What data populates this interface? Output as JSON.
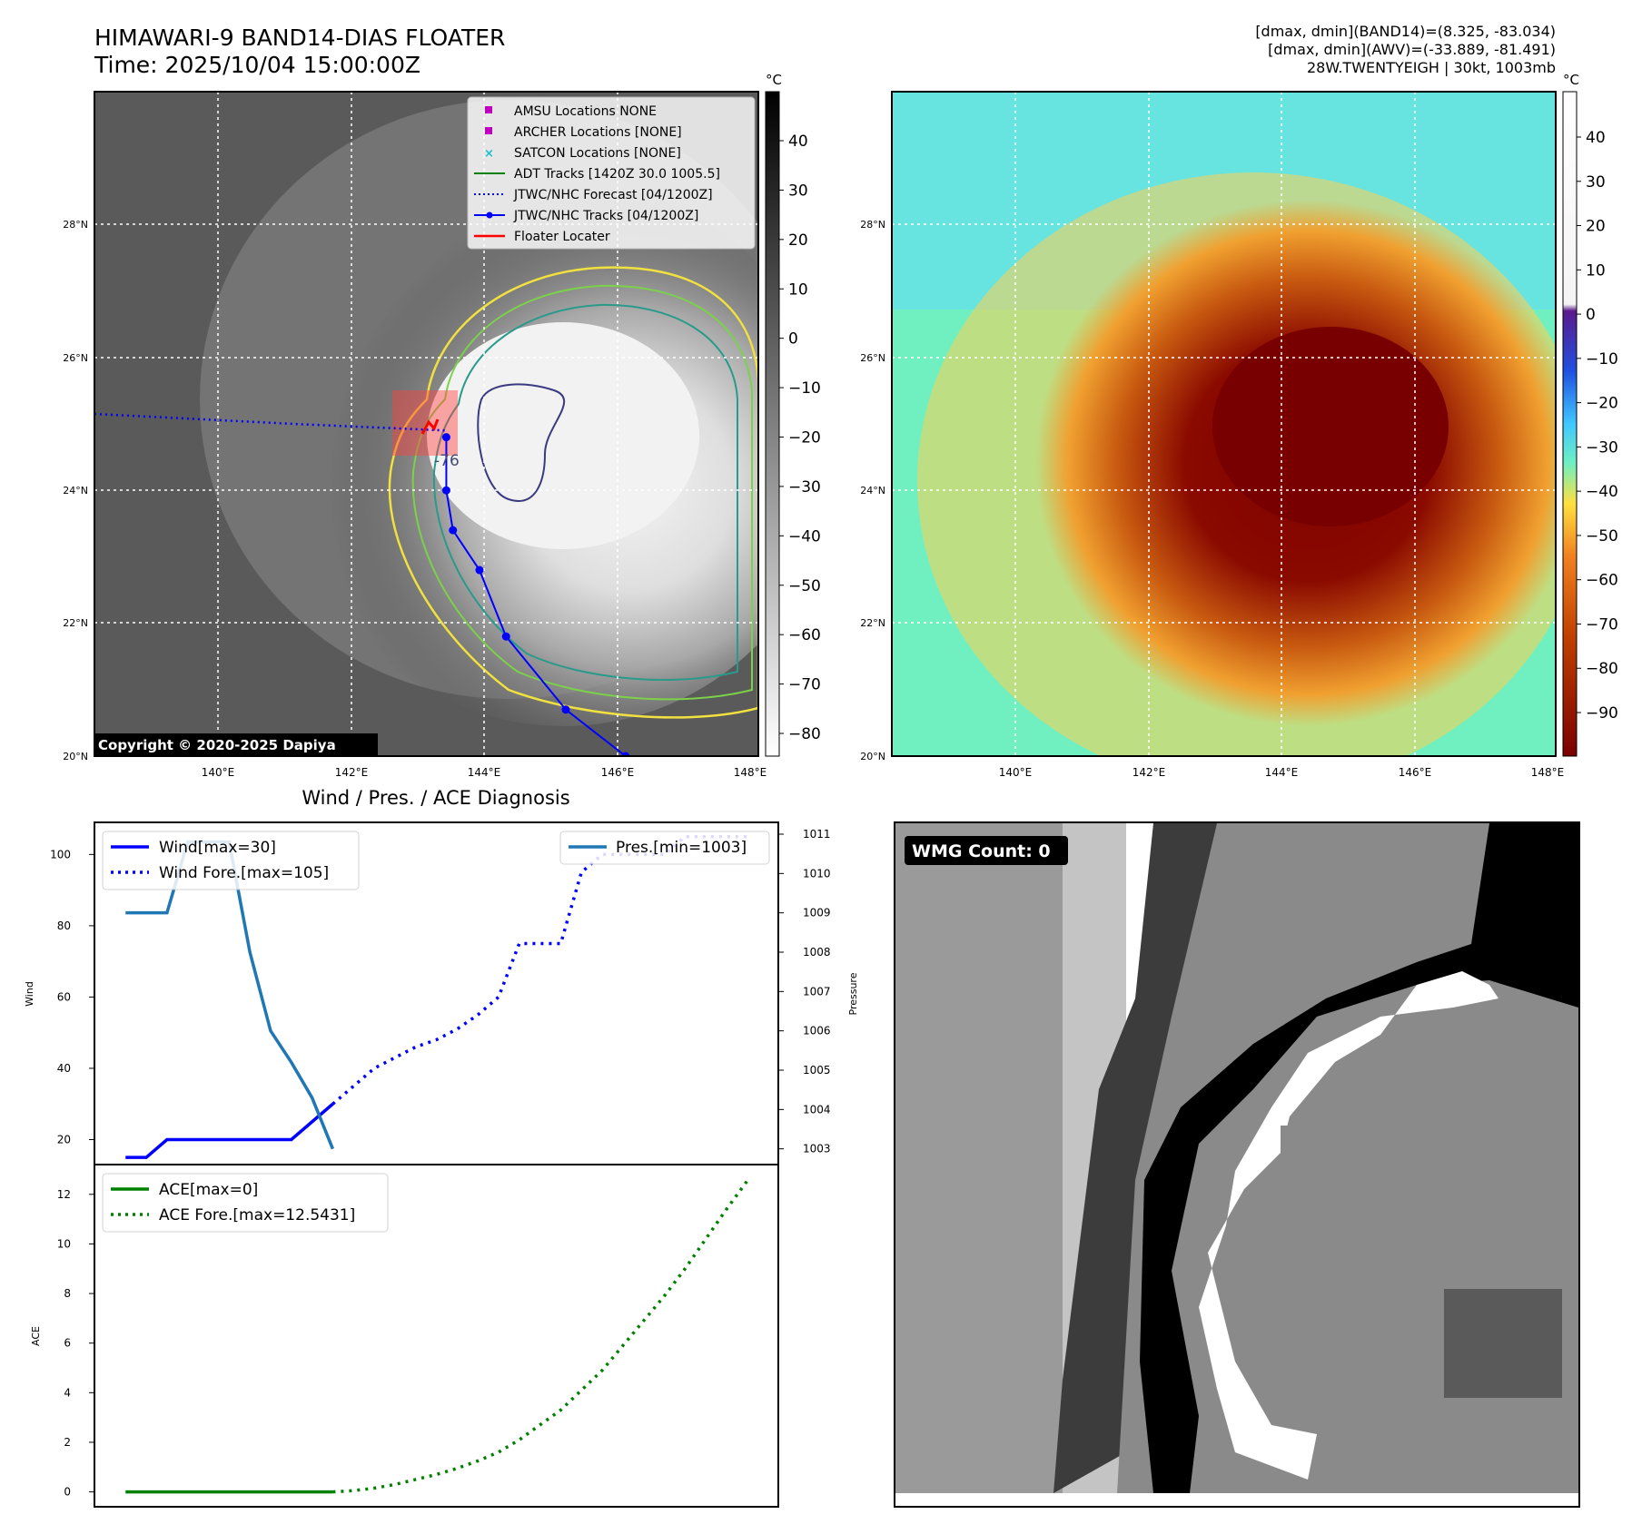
{
  "header": {
    "title_line1": "HIMAWARI-9 BAND14-DIAS FLOATER",
    "title_line2": "Time: 2025/10/04 15:00:00Z",
    "stats_line1": "[dmax, dmin](BAND14)=(8.325, -83.034)",
    "stats_line2": "[dmax, dmin](AWV)=(-33.889, -81.491)",
    "stats_line3": "28W.TWENTYEIGH | 30kt, 1003mb"
  },
  "map": {
    "lat_labels": [
      "28°N",
      "26°N",
      "24°N",
      "22°N",
      "20°N"
    ],
    "lon_labels": [
      "140°E",
      "142°E",
      "144°E",
      "146°E",
      "148°E"
    ],
    "copyright": "Copyright © 2020-2025 Dapiya",
    "contour_label": "-76",
    "legend": [
      {
        "label": "AMSU Locations NONE",
        "color": "#c000c0",
        "marker": "square"
      },
      {
        "label": "ARCHER Locations [NONE]",
        "color": "#c000c0",
        "marker": "square"
      },
      {
        "label": "SATCON Locations [NONE]",
        "color": "#17becf",
        "marker": "x"
      },
      {
        "label": "ADT Tracks [1420Z 30.0 1005.5]",
        "color": "#008000",
        "marker": "line"
      },
      {
        "label": "JTWC/NHC Forecast [04/1200Z]",
        "color": "#0000ff",
        "marker": "dotted"
      },
      {
        "label": "JTWC/NHC Tracks [04/1200Z]",
        "color": "#0000ff",
        "marker": "line-dot"
      },
      {
        "label": "Floater Locater",
        "color": "#ff0000",
        "marker": "line"
      }
    ],
    "colorbar_left": {
      "unit": "°C",
      "ticks": [
        "40",
        "30",
        "20",
        "10",
        "0",
        "−10",
        "−20",
        "−30",
        "−40",
        "−50",
        "−60",
        "−70",
        "−80"
      ]
    },
    "colorbar_right": {
      "unit": "°C",
      "ticks": [
        "40",
        "30",
        "20",
        "10",
        "0",
        "−10",
        "−20",
        "−30",
        "−40",
        "−50",
        "−60",
        "−70",
        "−80",
        "−90"
      ]
    },
    "track_points": [
      [
        143.3,
        24.8
      ],
      [
        143.3,
        24.0
      ],
      [
        143.4,
        23.4
      ],
      [
        143.8,
        22.8
      ],
      [
        144.2,
        21.8
      ],
      [
        145.1,
        20.7
      ],
      [
        146.0,
        20.0
      ]
    ],
    "forecast_track": [
      [
        138.0,
        25.15
      ],
      [
        141.0,
        25.0
      ],
      [
        143.3,
        24.9
      ]
    ]
  },
  "chart_data": [
    {
      "type": "line",
      "title": "Wind / Pres. / ACE Diagnosis",
      "ylabel": "Wind",
      "y2label": "Pressure",
      "ylim": [
        13,
        109
      ],
      "y2lim": [
        1002.6,
        1011.3
      ],
      "x": [
        0,
        1,
        2,
        3,
        4,
        5,
        6,
        7,
        8,
        9,
        10,
        11,
        12,
        13,
        14,
        15,
        16,
        17,
        18,
        19,
        20,
        21,
        22,
        23,
        24,
        25,
        26,
        27,
        28,
        29,
        30
      ],
      "series": [
        {
          "name": "Wind[max=30]",
          "color": "#0000ff",
          "style": "solid",
          "x": [
            0,
            1,
            2,
            3,
            4,
            5,
            6,
            7,
            8,
            9,
            10
          ],
          "values": [
            15,
            15,
            20,
            20,
            20,
            20,
            20,
            20,
            20,
            25,
            30
          ]
        },
        {
          "name": "Wind Fore.[max=105]",
          "color": "#0000ff",
          "style": "dotted",
          "x": [
            10,
            11,
            12,
            13,
            14,
            15,
            16,
            17,
            18,
            19,
            20,
            21,
            22,
            23,
            24,
            25,
            26,
            27,
            28,
            29,
            30
          ],
          "values": [
            30,
            35,
            40,
            43,
            46,
            48,
            51,
            55,
            60,
            75,
            75,
            75,
            95,
            100,
            100,
            100,
            100,
            105,
            105,
            105,
            105
          ]
        },
        {
          "name": "Pres.[min=1003]",
          "color": "#1f77b4",
          "style": "solid",
          "axis": "right",
          "x": [
            0,
            1,
            2,
            3,
            4,
            5,
            6,
            7,
            8,
            9,
            10
          ],
          "values": [
            1009,
            1009,
            1009,
            1010.8,
            1010.8,
            1010.8,
            1008,
            1006,
            1005.2,
            1004.3,
            1003
          ]
        }
      ],
      "y_ticks": [
        "100",
        "80",
        "60",
        "40",
        "20"
      ],
      "y2_ticks": [
        "1011",
        "1010",
        "1009",
        "1008",
        "1007",
        "1006",
        "1005",
        "1004",
        "1003"
      ]
    },
    {
      "type": "line",
      "ylabel": "ACE",
      "ylim": [
        -0.6,
        13.2
      ],
      "x": [
        0,
        1,
        2,
        3,
        4,
        5,
        6,
        7,
        8,
        9,
        10,
        11,
        12,
        13,
        14,
        15,
        16,
        17,
        18,
        19,
        20,
        21,
        22,
        23,
        24,
        25,
        26,
        27,
        28,
        29,
        30
      ],
      "series": [
        {
          "name": "ACE[max=0]",
          "color": "#008000",
          "style": "solid",
          "x": [
            0,
            1,
            2,
            3,
            4,
            5,
            6,
            7,
            8,
            9,
            10
          ],
          "values": [
            0,
            0,
            0,
            0,
            0,
            0,
            0,
            0,
            0,
            0,
            0
          ]
        },
        {
          "name": "ACE Fore.[max=12.5431]",
          "color": "#008000",
          "style": "dotted",
          "x": [
            10,
            11,
            12,
            13,
            14,
            15,
            16,
            17,
            18,
            19,
            20,
            21,
            22,
            23,
            24,
            25,
            26,
            27,
            28,
            29,
            30
          ],
          "values": [
            0,
            0.05,
            0.15,
            0.3,
            0.5,
            0.7,
            0.95,
            1.25,
            1.6,
            2.1,
            2.7,
            3.3,
            4.1,
            4.9,
            5.9,
            6.9,
            7.9,
            9.0,
            10.2,
            11.4,
            12.5431
          ]
        }
      ],
      "y_ticks": [
        "12",
        "10",
        "8",
        "6",
        "4",
        "2",
        "0"
      ]
    }
  ],
  "wmg": {
    "label": "WMG Count: 0"
  }
}
